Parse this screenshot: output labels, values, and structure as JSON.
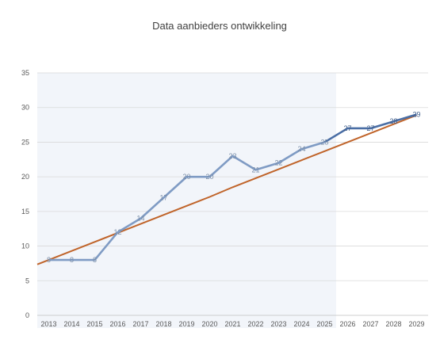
{
  "chart_data": {
    "type": "line",
    "title": "Data aanbieders ontwikkeling",
    "categories": [
      "2013",
      "2014",
      "2015",
      "2016",
      "2017",
      "2018",
      "2019",
      "2020",
      "2021",
      "2022",
      "2023",
      "2024",
      "2025",
      "2026",
      "2027",
      "2028",
      "2029"
    ],
    "ylim": [
      0,
      35
    ],
    "yticks": [
      0,
      5,
      10,
      15,
      20,
      25,
      30,
      35
    ],
    "grid": true,
    "shaded_region": {
      "from": "2013",
      "to": "2025",
      "color": "#f2f5fa"
    },
    "series": [
      {
        "values": [
          8,
          8,
          8,
          12,
          14,
          17,
          20,
          20,
          23,
          21,
          22,
          24,
          25,
          27,
          27,
          28,
          29
        ],
        "color_actual": "#7f9bc4",
        "color_forecast": "#4a6ea5",
        "forecast_from_index": 12,
        "data_labels": true,
        "label_color": "#7a8ea8"
      },
      {
        "values": [
          8.0,
          9.3,
          10.6,
          11.9,
          13.2,
          14.5,
          15.8,
          17.1,
          18.5,
          19.8,
          21.1,
          22.4,
          23.7,
          25.0,
          26.3,
          27.6,
          28.9
        ],
        "color": "#c0642a",
        "trendline": true
      }
    ]
  },
  "colors": {
    "grid": "#d9d9d9",
    "axis": "#bfbfbf"
  }
}
